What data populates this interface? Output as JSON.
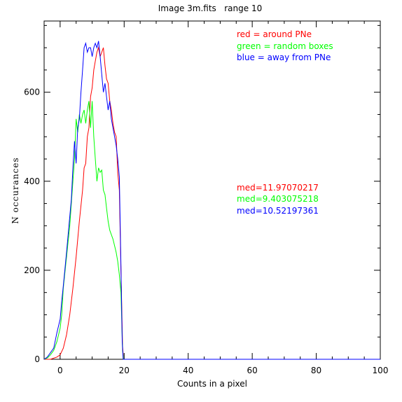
{
  "chart_data": {
    "type": "line",
    "title": "Image 3m.fits   range 10",
    "xlabel": "Counts in a pixel",
    "ylabel": "N occurances",
    "xlim": [
      -5,
      100
    ],
    "ylim": [
      0,
      760
    ],
    "x_ticks": [
      0,
      20,
      40,
      60,
      80,
      100
    ],
    "y_ticks": [
      0,
      200,
      400,
      600
    ],
    "grid": false,
    "legend_entries": [
      {
        "text": "red = around PNe",
        "color": "#ff0000"
      },
      {
        "text": "green = random boxes",
        "color": "#00ff00"
      },
      {
        "text": "blue = away from PNe",
        "color": "#0000ff"
      }
    ],
    "medians": [
      {
        "text": "med=11.97070217",
        "color": "#ff0000"
      },
      {
        "text": "med=9.403075218",
        "color": "#00ff00"
      },
      {
        "text": "med=10.52197361",
        "color": "#0000ff"
      }
    ],
    "series": [
      {
        "color": "#ff0000",
        "points": [
          [
            -5,
            0
          ],
          [
            -3,
            0
          ],
          [
            -1,
            5
          ],
          [
            0,
            10
          ],
          [
            1,
            25
          ],
          [
            2,
            55
          ],
          [
            3,
            100
          ],
          [
            4,
            160
          ],
          [
            5,
            230
          ],
          [
            6,
            310
          ],
          [
            7,
            380
          ],
          [
            7.5,
            430
          ],
          [
            8,
            440
          ],
          [
            8.5,
            500
          ],
          [
            9,
            520
          ],
          [
            9.5,
            590
          ],
          [
            10,
            610
          ],
          [
            10.5,
            650
          ],
          [
            11,
            670
          ],
          [
            11.5,
            690
          ],
          [
            12,
            700
          ],
          [
            12.5,
            680
          ],
          [
            13,
            690
          ],
          [
            13.5,
            700
          ],
          [
            14,
            660
          ],
          [
            14.5,
            630
          ],
          [
            15,
            620
          ],
          [
            15.5,
            580
          ],
          [
            16,
            560
          ],
          [
            16.5,
            530
          ],
          [
            17,
            510
          ],
          [
            17.5,
            500
          ],
          [
            18,
            420
          ],
          [
            18.5,
            380
          ],
          [
            19,
            200
          ],
          [
            19.5,
            30
          ],
          [
            19.8,
            0
          ],
          [
            100,
            0
          ]
        ]
      },
      {
        "color": "#00ff00",
        "points": [
          [
            -5,
            0
          ],
          [
            -4,
            3
          ],
          [
            -3,
            10
          ],
          [
            -2,
            20
          ],
          [
            -1,
            40
          ],
          [
            0,
            70
          ],
          [
            0.5,
            100
          ],
          [
            1,
            160
          ],
          [
            2,
            230
          ],
          [
            3,
            300
          ],
          [
            4,
            400
          ],
          [
            4.5,
            450
          ],
          [
            5,
            540
          ],
          [
            5.5,
            510
          ],
          [
            6,
            550
          ],
          [
            6.5,
            530
          ],
          [
            7,
            550
          ],
          [
            7.5,
            560
          ],
          [
            8,
            530
          ],
          [
            8.5,
            560
          ],
          [
            9,
            580
          ],
          [
            9.5,
            520
          ],
          [
            10,
            580
          ],
          [
            10.5,
            500
          ],
          [
            11,
            450
          ],
          [
            11.5,
            400
          ],
          [
            12,
            430
          ],
          [
            12.5,
            420
          ],
          [
            13,
            425
          ],
          [
            13.5,
            380
          ],
          [
            14,
            370
          ],
          [
            14.5,
            340
          ],
          [
            15,
            310
          ],
          [
            15.5,
            290
          ],
          [
            16,
            280
          ],
          [
            16.5,
            270
          ],
          [
            17,
            255
          ],
          [
            17.5,
            240
          ],
          [
            18,
            220
          ],
          [
            18.5,
            190
          ],
          [
            19,
            150
          ],
          [
            19.5,
            20
          ],
          [
            19.8,
            0
          ],
          [
            100,
            0
          ]
        ]
      },
      {
        "color": "#0000ff",
        "points": [
          [
            -5,
            0
          ],
          [
            -4,
            5
          ],
          [
            -3,
            15
          ],
          [
            -2,
            25
          ],
          [
            -1,
            60
          ],
          [
            0,
            90
          ],
          [
            0.5,
            130
          ],
          [
            1,
            165
          ],
          [
            2,
            240
          ],
          [
            3,
            320
          ],
          [
            3.5,
            360
          ],
          [
            4,
            430
          ],
          [
            4.5,
            490
          ],
          [
            5,
            440
          ],
          [
            5.5,
            520
          ],
          [
            6,
            540
          ],
          [
            6.5,
            600
          ],
          [
            7,
            650
          ],
          [
            7.5,
            700
          ],
          [
            8,
            710
          ],
          [
            8.5,
            690
          ],
          [
            9,
            700
          ],
          [
            9.5,
            700
          ],
          [
            10,
            680
          ],
          [
            10.5,
            700
          ],
          [
            11,
            710
          ],
          [
            11.5,
            700
          ],
          [
            12,
            715
          ],
          [
            12.5,
            680
          ],
          [
            13,
            640
          ],
          [
            13.5,
            600
          ],
          [
            14,
            620
          ],
          [
            14.5,
            590
          ],
          [
            15,
            560
          ],
          [
            15.5,
            580
          ],
          [
            16,
            540
          ],
          [
            16.5,
            520
          ],
          [
            17,
            500
          ],
          [
            17.5,
            480
          ],
          [
            18,
            450
          ],
          [
            18.5,
            410
          ],
          [
            19,
            210
          ],
          [
            19.4,
            40
          ],
          [
            19.7,
            0
          ],
          [
            100,
            0
          ]
        ]
      }
    ]
  }
}
